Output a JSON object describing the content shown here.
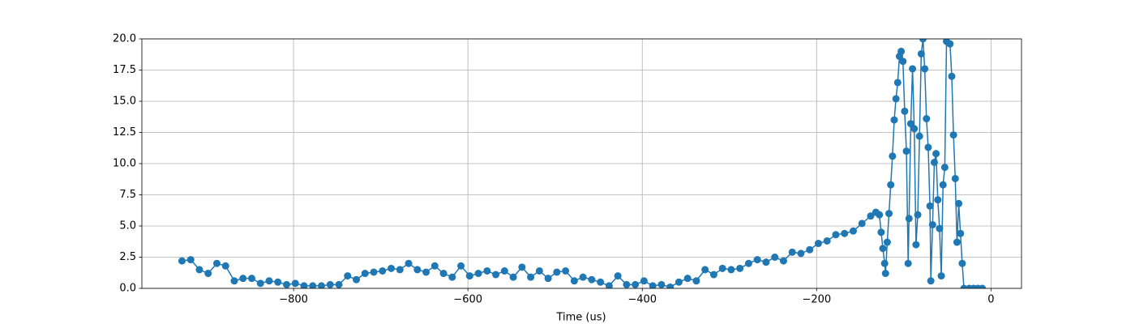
{
  "chart_data": {
    "type": "line",
    "color": "#1f77b4",
    "grid": true,
    "markers": true,
    "xlabel": "Time (us)",
    "xlim": [
      -974,
      35
    ],
    "ylim": [
      0,
      20
    ],
    "xticks": [
      {
        "value": -800,
        "label": "−800"
      },
      {
        "value": -600,
        "label": "−600"
      },
      {
        "value": -400,
        "label": "−400"
      },
      {
        "value": -200,
        "label": "−200"
      },
      0
    ],
    "yticks": [
      {
        "value": 0,
        "label": "0.0"
      },
      2.5,
      5,
      7.5,
      10,
      12.5,
      15,
      17.5,
      20
    ],
    "x": [
      -928,
      -918,
      -908,
      -898,
      -888,
      -878,
      -868,
      -858,
      -848,
      -838,
      -828,
      -818,
      -808,
      -798,
      -788,
      -778,
      -768,
      -758,
      -748,
      -738,
      -728,
      -718,
      -708,
      -698,
      -688,
      -678,
      -668,
      -658,
      -648,
      -638,
      -628,
      -618,
      -608,
      -598,
      -588,
      -578,
      -568,
      -558,
      -548,
      -538,
      -528,
      -518,
      -508,
      -498,
      -488,
      -478,
      -468,
      -458,
      -448,
      -438,
      -428,
      -418,
      -408,
      -398,
      -388,
      -378,
      -368,
      -358,
      -348,
      -338,
      -328,
      -318,
      -308,
      -298,
      -288,
      -278,
      -268,
      -258,
      -248,
      -238,
      -228,
      -218,
      -208,
      -198,
      -188,
      -178,
      -168,
      -158,
      -148,
      -138,
      -132,
      -128,
      -126,
      -124,
      -122,
      -121,
      -119,
      -117,
      -115,
      -113,
      -111,
      -109,
      -107,
      -105,
      -103,
      -101,
      -99,
      -97,
      -95,
      -94,
      -92,
      -90,
      -88,
      -86,
      -84,
      -82,
      -80,
      -78,
      -76,
      -74,
      -72,
      -70,
      -69,
      -67,
      -65,
      -63,
      -61,
      -59,
      -57,
      -55,
      -53,
      -51,
      -47,
      -45,
      -43,
      -41,
      -39,
      -37,
      -35,
      -33,
      -31,
      -25,
      -20,
      -15,
      -10
    ],
    "values": [
      2.2,
      2.3,
      1.5,
      1.2,
      2.0,
      1.8,
      0.6,
      0.8,
      0.8,
      0.4,
      0.6,
      0.5,
      0.3,
      0.4,
      0.2,
      0.2,
      0.2,
      0.3,
      0.3,
      1.0,
      0.7,
      1.2,
      1.3,
      1.4,
      1.6,
      1.5,
      2.0,
      1.5,
      1.3,
      1.8,
      1.2,
      0.9,
      1.8,
      1.0,
      1.2,
      1.4,
      1.1,
      1.4,
      0.9,
      1.7,
      0.9,
      1.4,
      0.8,
      1.3,
      1.4,
      0.6,
      0.9,
      0.7,
      0.5,
      0.2,
      1.0,
      0.3,
      0.3,
      0.6,
      0.2,
      0.3,
      0.1,
      0.5,
      0.8,
      0.6,
      1.5,
      1.1,
      1.6,
      1.5,
      1.6,
      2.0,
      2.3,
      2.1,
      2.5,
      2.2,
      2.9,
      2.8,
      3.1,
      3.6,
      3.8,
      4.3,
      4.4,
      4.6,
      5.2,
      5.8,
      6.1,
      5.9,
      4.5,
      3.2,
      2.0,
      1.2,
      3.7,
      6.0,
      8.3,
      10.6,
      13.5,
      15.2,
      16.5,
      18.6,
      19.0,
      18.2,
      14.2,
      11.0,
      2.0,
      5.6,
      13.2,
      17.6,
      12.8,
      3.5,
      5.9,
      12.2,
      18.8,
      20,
      17.6,
      13.6,
      11.3,
      6.6,
      0.6,
      5.1,
      10.1,
      10.8,
      7.1,
      4.8,
      1.0,
      8.3,
      9.7,
      19.8,
      19.6,
      17.0,
      12.3,
      8.8,
      3.7,
      6.8,
      4.4,
      2.0,
      0,
      0,
      0,
      0,
      0
    ]
  }
}
